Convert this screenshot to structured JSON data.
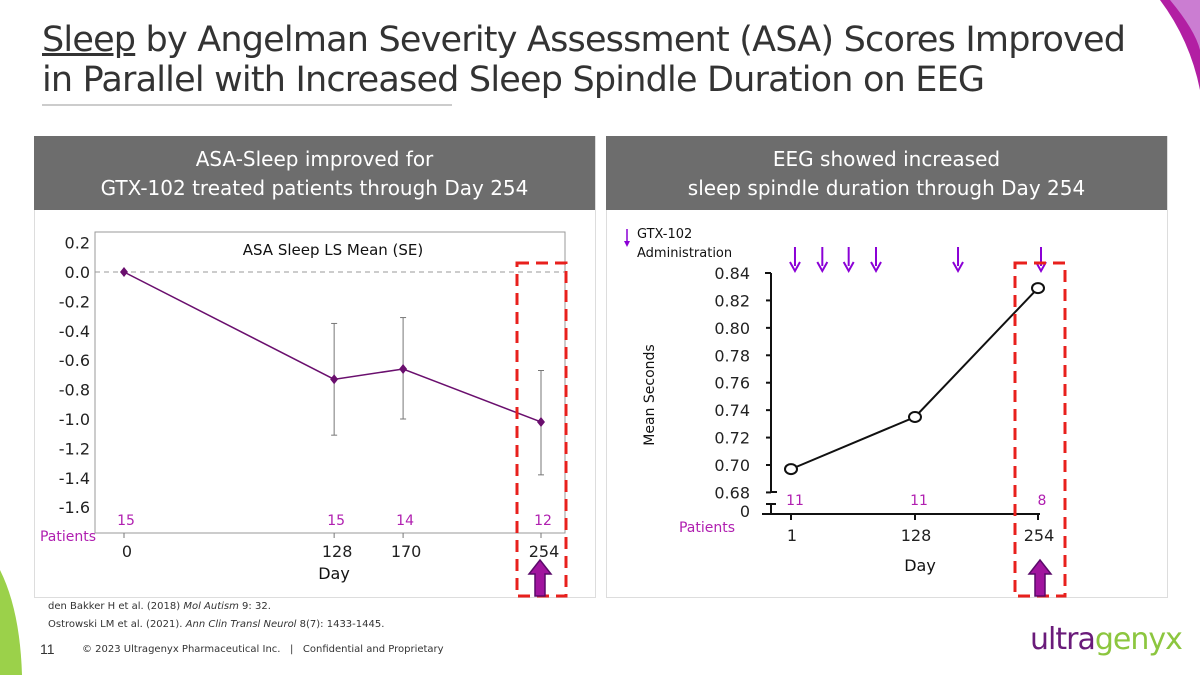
{
  "title": {
    "underlined": "Sleep",
    "rest_line1": " by Angelman Severity Assessment (ASA) Scores Improved",
    "line2": "in Parallel with Increased Sleep Spindle Duration on EEG"
  },
  "left_panel": {
    "header_line1": "ASA-Sleep improved for",
    "header_line2": "GTX-102 treated patients through Day 254"
  },
  "right_panel": {
    "header_line1": "EEG showed increased",
    "header_line2": "sleep spindle duration through Day 254"
  },
  "colors": {
    "purple": "#6a0f6e",
    "magenta": "#b01fb0",
    "arrow": "#8b00d6",
    "highlight": "#e8201d",
    "header_bg": "#6d6d6d"
  },
  "chart_data": [
    {
      "type": "line",
      "title": "ASA Sleep LS Mean (SE)",
      "xlabel": "Day",
      "ylabel": "",
      "ylim": [
        -1.6,
        0.2
      ],
      "yticks": [
        "0.2",
        "0.0",
        "-0.2",
        "-0.4",
        "-0.6",
        "-0.8",
        "-1.0",
        "-1.2",
        "-1.4",
        "-1.6"
      ],
      "x": [
        0,
        128,
        170,
        254
      ],
      "xtick_labels": [
        "0",
        "128",
        "170",
        "254"
      ],
      "series": [
        {
          "values": [
            0.0,
            -0.73,
            -0.66,
            -1.02
          ],
          "error_low": [
            null,
            -1.11,
            -1.0,
            -1.38
          ],
          "error_high": [
            null,
            -0.35,
            -0.31,
            -0.67
          ]
        }
      ],
      "reference_line": 0.0,
      "patients_label": "Patients",
      "patients": [
        "15",
        "15",
        "14",
        "12"
      ],
      "highlight_day": 254
    },
    {
      "type": "line",
      "xlabel": "Day",
      "ylabel": "Mean Seconds",
      "ylim": [
        0.68,
        0.84
      ],
      "yticks": [
        "0.84",
        "0.82",
        "0.80",
        "0.78",
        "0.76",
        "0.74",
        "0.72",
        "0.70",
        "0.68"
      ],
      "y_break_label": "0",
      "x": [
        1,
        128,
        254
      ],
      "xtick_labels": [
        "1",
        "128",
        "254"
      ],
      "series": [
        {
          "values": [
            0.697,
            0.735,
            0.829
          ]
        }
      ],
      "patients_label": "Patients",
      "patients": [
        "11",
        "11",
        "8"
      ],
      "legend": {
        "line1": "GTX-102",
        "line2": "Administration"
      },
      "administration_days": [
        2,
        30,
        57,
        85,
        169,
        254
      ],
      "highlight_day": 254
    }
  ],
  "references": {
    "ref1_pre": "den Bakker H et al. (2018) ",
    "ref1_journal": "Mol Autism",
    "ref1_post": " 9: 32.",
    "ref2_pre": "Ostrowski LM et al. (2021). ",
    "ref2_journal": "Ann Clin Transl Neurol",
    "ref2_post": " 8(7): 1433-1445."
  },
  "footer": {
    "page": "11",
    "copyright": "© 2023 Ultragenyx Pharmaceutical Inc.   |   Confidential and Proprietary"
  },
  "logo": {
    "part1": "ultra",
    "part2": "genyx"
  }
}
